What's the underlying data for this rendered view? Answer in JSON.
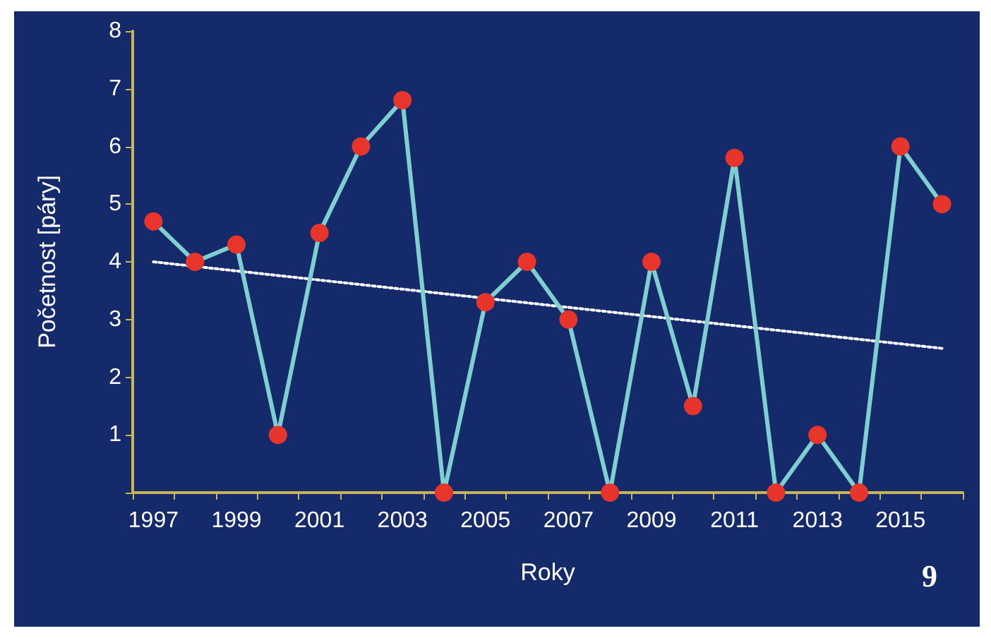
{
  "chart_data": {
    "type": "line",
    "xlabel": "Roky",
    "ylabel": "Početnost [páry]",
    "categories": [
      "1997",
      null,
      "1999",
      null,
      "2001",
      null,
      "2003",
      null,
      "2005",
      null,
      "2007",
      null,
      "2009",
      null,
      "2011",
      null,
      "2013",
      null,
      "2015",
      null
    ],
    "series": [
      {
        "color": "#7fcfd0",
        "marker": "circle",
        "values": [
          4.7,
          4.0,
          4.3,
          1.0,
          4.5,
          6.0,
          6.8,
          0,
          3.3,
          4.0,
          3.0,
          0,
          4.0,
          1.5,
          5.8,
          0,
          1.0,
          0,
          6.0,
          5.0
        ]
      },
      {
        "type": "line",
        "color": "#ffffff",
        "marker": "none",
        "line_style": "dotted",
        "values": [
          4.0,
          null,
          null,
          null,
          null,
          null,
          null,
          null,
          null,
          null,
          null,
          null,
          null,
          null,
          null,
          null,
          null,
          null,
          null,
          2.5
        ]
      }
    ],
    "ylim": [
      0,
      8
    ],
    "yticks": [
      {
        "value": 0,
        "label": null
      },
      1,
      2,
      3,
      4,
      5,
      6,
      7,
      8
    ],
    "grid": false,
    "annotations": [
      "9"
    ]
  }
}
